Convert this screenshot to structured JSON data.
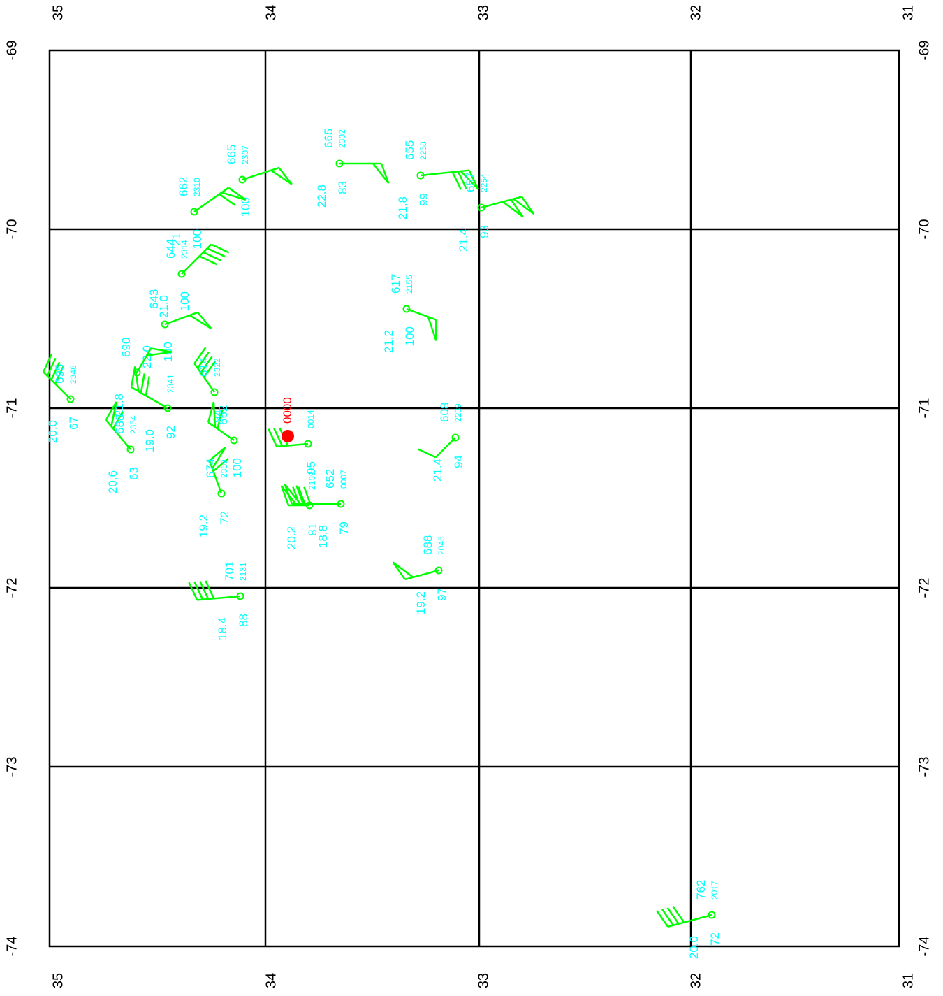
{
  "map": {
    "colors": {
      "background": "#ffffff",
      "grid": "#000000",
      "station": "#00ff00",
      "station_text": "#00ffff",
      "highlight": "#ff0000"
    },
    "longitude_labels": [
      "35",
      "34",
      "33",
      "32",
      "31"
    ],
    "latitude_labels": [
      "-69",
      "-70",
      "-71",
      "-72",
      "-73",
      "-74"
    ],
    "highlight": {
      "label": "0000"
    },
    "stations": [
      {
        "pressure": "665",
        "time": "2302",
        "temp": "22.8",
        "rh": "83"
      },
      {
        "pressure": "665",
        "time": "2307",
        "temp": "",
        "rh": "100"
      },
      {
        "pressure": "655",
        "time": "2258",
        "temp": "21.8",
        "rh": "99"
      },
      {
        "pressure": "657",
        "time": "2254",
        "temp": "21.4",
        "rh": "93"
      },
      {
        "pressure": "662",
        "time": "2310",
        "temp": "21",
        "rh": "100"
      },
      {
        "pressure": "644",
        "time": "2314",
        "temp": "21.0",
        "rh": "100"
      },
      {
        "pressure": "643",
        "time": "",
        "temp": "22.0",
        "rh": "100"
      },
      {
        "pressure": "617",
        "time": "2155",
        "temp": "21.2",
        "rh": "100"
      },
      {
        "pressure": "690",
        "time": "",
        "temp": "21.8",
        "rh": ""
      },
      {
        "pressure": "695",
        "time": "2348",
        "temp": "20.0",
        "rh": "67"
      },
      {
        "pressure": "614",
        "time": "2322",
        "temp": "",
        "rh": "94"
      },
      {
        "pressure": "",
        "time": "2341",
        "temp": "19.0",
        "rh": "92"
      },
      {
        "pressure": "688",
        "time": "2354",
        "temp": "20.6",
        "rh": "63"
      },
      {
        "pressure": "662",
        "time": "",
        "temp": "",
        "rh": "100"
      },
      {
        "pressure": "608",
        "time": "2239",
        "temp": "21.4",
        "rh": "94"
      },
      {
        "pressure": "",
        "time": "0014",
        "temp": "",
        "rh": "95"
      },
      {
        "pressure": "674",
        "time": "2359",
        "temp": "19.2",
        "rh": "72"
      },
      {
        "pressure": "652",
        "time": "0007",
        "temp": "18.8",
        "rh": "79"
      },
      {
        "pressure": "",
        "time": "2139",
        "temp": "20.2",
        "rh": "81"
      },
      {
        "pressure": "688",
        "time": "2046",
        "temp": "19.2",
        "rh": "97"
      },
      {
        "pressure": "701",
        "time": "2131",
        "temp": "18.4",
        "rh": "88"
      },
      {
        "pressure": "762",
        "time": "2017",
        "temp": "20.0",
        "rh": "72"
      }
    ]
  }
}
